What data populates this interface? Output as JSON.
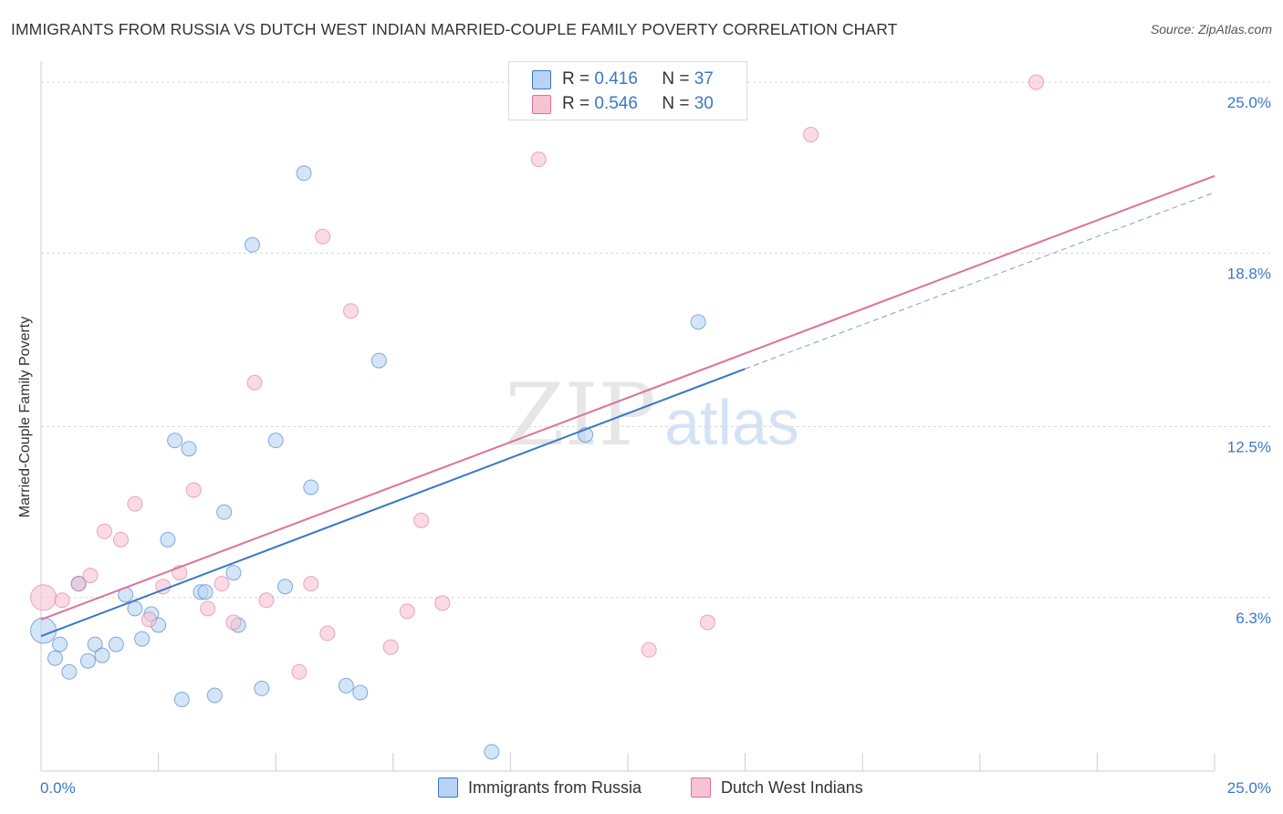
{
  "title": "IMMIGRANTS FROM RUSSIA VS DUTCH WEST INDIAN MARRIED-COUPLE FAMILY POVERTY CORRELATION CHART",
  "source": "Source: ZipAtlas.com",
  "watermark": {
    "zip": "ZIP",
    "atlas": "atlas"
  },
  "colors": {
    "blue": "#3a78c8",
    "blue_fill": "#b8d3f3",
    "pink": "#e0709a",
    "pink_fill": "#f7c3d3",
    "grid": "#d8d8d8",
    "tick_label": "#3a78c8"
  },
  "legend": {
    "r_label": "R =",
    "n_label": "N =",
    "series": [
      {
        "name": "Immigrants from Russia",
        "r": "0.416",
        "n": "37",
        "color": "#3a78c8",
        "fill": "#b8d3f3"
      },
      {
        "name": "Dutch West Indians",
        "r": "0.546",
        "n": "30",
        "color": "#e0709a",
        "fill": "#f7c3d3"
      }
    ]
  },
  "chart_data": {
    "type": "scatter",
    "title": "IMMIGRANTS FROM RUSSIA VS DUTCH WEST INDIAN MARRIED-COUPLE FAMILY POVERTY CORRELATION CHART",
    "xlabel": "",
    "ylabel": "Married-Couple Family Poverty",
    "xlim": [
      0,
      25
    ],
    "ylim": [
      0,
      25.6
    ],
    "x_tick_labels": [
      "0.0%",
      "25.0%"
    ],
    "y_ticks": [
      6.3,
      12.5,
      18.8,
      25.0
    ],
    "y_tick_labels": [
      "6.3%",
      "12.5%",
      "18.8%",
      "25.0%"
    ],
    "grid": true,
    "legend_position": "top-center",
    "series": [
      {
        "name": "Immigrants from Russia",
        "color": "#3a78c8",
        "trend": {
          "x0": 0,
          "y0": 4.9,
          "x1": 15,
          "y1": 14.6,
          "dash_to_x": 25,
          "dash_to_y": 21.0
        },
        "points": [
          {
            "x": 0.05,
            "y": 5.1,
            "big": true
          },
          {
            "x": 0.3,
            "y": 4.1
          },
          {
            "x": 0.4,
            "y": 4.6
          },
          {
            "x": 0.6,
            "y": 3.6
          },
          {
            "x": 0.8,
            "y": 6.8
          },
          {
            "x": 1.0,
            "y": 4.0
          },
          {
            "x": 1.15,
            "y": 4.6
          },
          {
            "x": 1.3,
            "y": 4.2
          },
          {
            "x": 1.6,
            "y": 4.6
          },
          {
            "x": 1.8,
            "y": 6.4
          },
          {
            "x": 2.0,
            "y": 5.9
          },
          {
            "x": 2.15,
            "y": 4.8
          },
          {
            "x": 2.35,
            "y": 5.7
          },
          {
            "x": 2.5,
            "y": 5.3
          },
          {
            "x": 2.7,
            "y": 8.4
          },
          {
            "x": 2.85,
            "y": 12.0
          },
          {
            "x": 3.0,
            "y": 2.6
          },
          {
            "x": 3.15,
            "y": 11.7
          },
          {
            "x": 3.4,
            "y": 6.5
          },
          {
            "x": 3.5,
            "y": 6.5
          },
          {
            "x": 3.7,
            "y": 2.75
          },
          {
            "x": 3.9,
            "y": 9.4
          },
          {
            "x": 4.1,
            "y": 7.2
          },
          {
            "x": 4.2,
            "y": 5.3
          },
          {
            "x": 4.5,
            "y": 19.1
          },
          {
            "x": 4.7,
            "y": 3.0
          },
          {
            "x": 5.0,
            "y": 12.0
          },
          {
            "x": 5.2,
            "y": 6.7
          },
          {
            "x": 5.6,
            "y": 21.7
          },
          {
            "x": 5.75,
            "y": 10.3
          },
          {
            "x": 6.5,
            "y": 3.1
          },
          {
            "x": 6.8,
            "y": 2.85
          },
          {
            "x": 7.2,
            "y": 14.9
          },
          {
            "x": 9.6,
            "y": 0.7
          },
          {
            "x": 11.6,
            "y": 12.2
          },
          {
            "x": 14.0,
            "y": 16.3
          },
          {
            "x": 0.8,
            "y": 6.8
          }
        ]
      },
      {
        "name": "Dutch West Indians",
        "color": "#e0709a",
        "trend": {
          "x0": 0,
          "y0": 5.5,
          "x1": 25,
          "y1": 21.6
        },
        "points": [
          {
            "x": 0.05,
            "y": 6.3,
            "big": true
          },
          {
            "x": 0.45,
            "y": 6.2
          },
          {
            "x": 0.8,
            "y": 6.8
          },
          {
            "x": 1.05,
            "y": 7.1
          },
          {
            "x": 1.35,
            "y": 8.7
          },
          {
            "x": 1.7,
            "y": 8.4
          },
          {
            "x": 2.0,
            "y": 9.7
          },
          {
            "x": 2.3,
            "y": 5.5
          },
          {
            "x": 2.6,
            "y": 6.7
          },
          {
            "x": 2.95,
            "y": 7.2
          },
          {
            "x": 3.25,
            "y": 10.2
          },
          {
            "x": 3.55,
            "y": 5.9
          },
          {
            "x": 3.85,
            "y": 6.8
          },
          {
            "x": 4.1,
            "y": 5.4
          },
          {
            "x": 4.55,
            "y": 14.1
          },
          {
            "x": 4.8,
            "y": 6.2
          },
          {
            "x": 5.5,
            "y": 3.6
          },
          {
            "x": 5.75,
            "y": 6.8
          },
          {
            "x": 6.0,
            "y": 19.4
          },
          {
            "x": 6.1,
            "y": 5.0
          },
          {
            "x": 6.6,
            "y": 16.7
          },
          {
            "x": 7.45,
            "y": 4.5
          },
          {
            "x": 7.8,
            "y": 5.8
          },
          {
            "x": 8.1,
            "y": 9.1
          },
          {
            "x": 8.55,
            "y": 6.1
          },
          {
            "x": 10.6,
            "y": 22.2
          },
          {
            "x": 12.95,
            "y": 4.4
          },
          {
            "x": 14.2,
            "y": 5.4
          },
          {
            "x": 16.4,
            "y": 23.1
          },
          {
            "x": 21.2,
            "y": 25.0
          }
        ]
      }
    ]
  }
}
